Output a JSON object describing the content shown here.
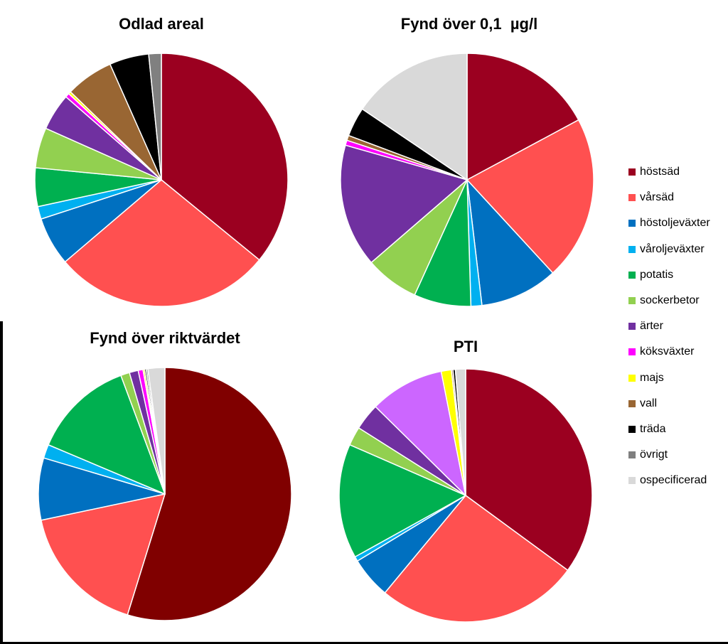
{
  "categories": [
    "höstsäd",
    "vårsäd",
    "höstoljeväxter",
    "våroljeväxter",
    "potatis",
    "sockerbetor",
    "ärter",
    "köksväxter",
    "majs",
    "vall",
    "träda",
    "övrigt",
    "ospecificerad"
  ],
  "colors": [
    "#9B0020",
    "#FF5050",
    "#0070C0",
    "#00B0F0",
    "#00B050",
    "#92D050",
    "#7030A0",
    "#FF00FF",
    "#FFFF00",
    "#996633",
    "#000000",
    "#808080",
    "#D9D9D9"
  ],
  "chart_data": [
    {
      "type": "pie",
      "title": "Odlad areal",
      "categories": [
        "höstsäd",
        "vårsäd",
        "höstoljeväxter",
        "våroljeväxter",
        "potatis",
        "sockerbetor",
        "ärter",
        "köksväxter",
        "majs",
        "vall",
        "träda",
        "övrigt",
        "ospecificerad"
      ],
      "values": [
        33.5,
        26.0,
        5.8,
        1.5,
        4.6,
        4.8,
        4.4,
        0.5,
        0.3,
        5.7,
        4.7,
        1.5,
        0
      ],
      "colors": [
        "#9B0020",
        "#FF5050",
        "#0070C0",
        "#00B0F0",
        "#00B050",
        "#92D050",
        "#7030A0",
        "#FF00FF",
        "#FFFF00",
        "#996633",
        "#000000",
        "#808080",
        "#D9D9D9"
      ]
    },
    {
      "type": "pie",
      "title": "Fynd över 0,1  µg/l",
      "categories": [
        "höstsäd",
        "vårsäd",
        "höstoljeväxter",
        "våroljeväxter",
        "potatis",
        "sockerbetor",
        "ärter",
        "köksväxter",
        "majs",
        "vall",
        "träda",
        "övrigt",
        "ospecificerad"
      ],
      "values": [
        16.0,
        19.6,
        9.3,
        1.3,
        6.8,
        6.4,
        14.7,
        0.6,
        0,
        0.6,
        3.5,
        0,
        14.5
      ],
      "colors": [
        "#9B0020",
        "#FF5050",
        "#0070C0",
        "#00B0F0",
        "#00B050",
        "#92D050",
        "#7030A0",
        "#FF00FF",
        "#FFFF00",
        "#996633",
        "#000000",
        "#808080",
        "#D9D9D9"
      ]
    },
    {
      "type": "pie",
      "title": "Fynd över riktvärdet",
      "categories": [
        "höstsäd",
        "vårsäd",
        "höstoljeväxter",
        "våroljeväxter",
        "potatis",
        "sockerbetor",
        "ärter",
        "köksväxter",
        "majs",
        "vall",
        "träda",
        "övrigt",
        "ospecificerad"
      ],
      "values": [
        53.2,
        16.4,
        7.7,
        1.7,
        12.6,
        1.1,
        1.1,
        0.6,
        0.2,
        0,
        0.2,
        0.2,
        2.1
      ],
      "colors": [
        "#800000",
        "#FF5050",
        "#0070C0",
        "#00B0F0",
        "#00B050",
        "#92D050",
        "#7030A0",
        "#FF00FF",
        "#FFFF00",
        "#996633",
        "#000000",
        "#808080",
        "#D9D9D9"
      ]
    },
    {
      "type": "pie",
      "title": "PTI",
      "categories": [
        "höstsäd",
        "vårsäd",
        "höstoljeväxter",
        "våroljeväxter",
        "potatis",
        "sockerbetor",
        "ärter",
        "köksväxter",
        "majs",
        "vall",
        "träda",
        "övrigt",
        "ospecificerad"
      ],
      "values": [
        35.0,
        25.9,
        5.3,
        0.6,
        14.6,
        2.4,
        3.4,
        9.5,
        1.3,
        0.2,
        0.3,
        0,
        1.3
      ],
      "colors": [
        "#9B0020",
        "#FF5050",
        "#0070C0",
        "#00B0F0",
        "#00B050",
        "#92D050",
        "#7030A0",
        "#CC66FF",
        "#FFFF00",
        "#996633",
        "#000000",
        "#808080",
        "#D9D9D9"
      ]
    }
  ]
}
